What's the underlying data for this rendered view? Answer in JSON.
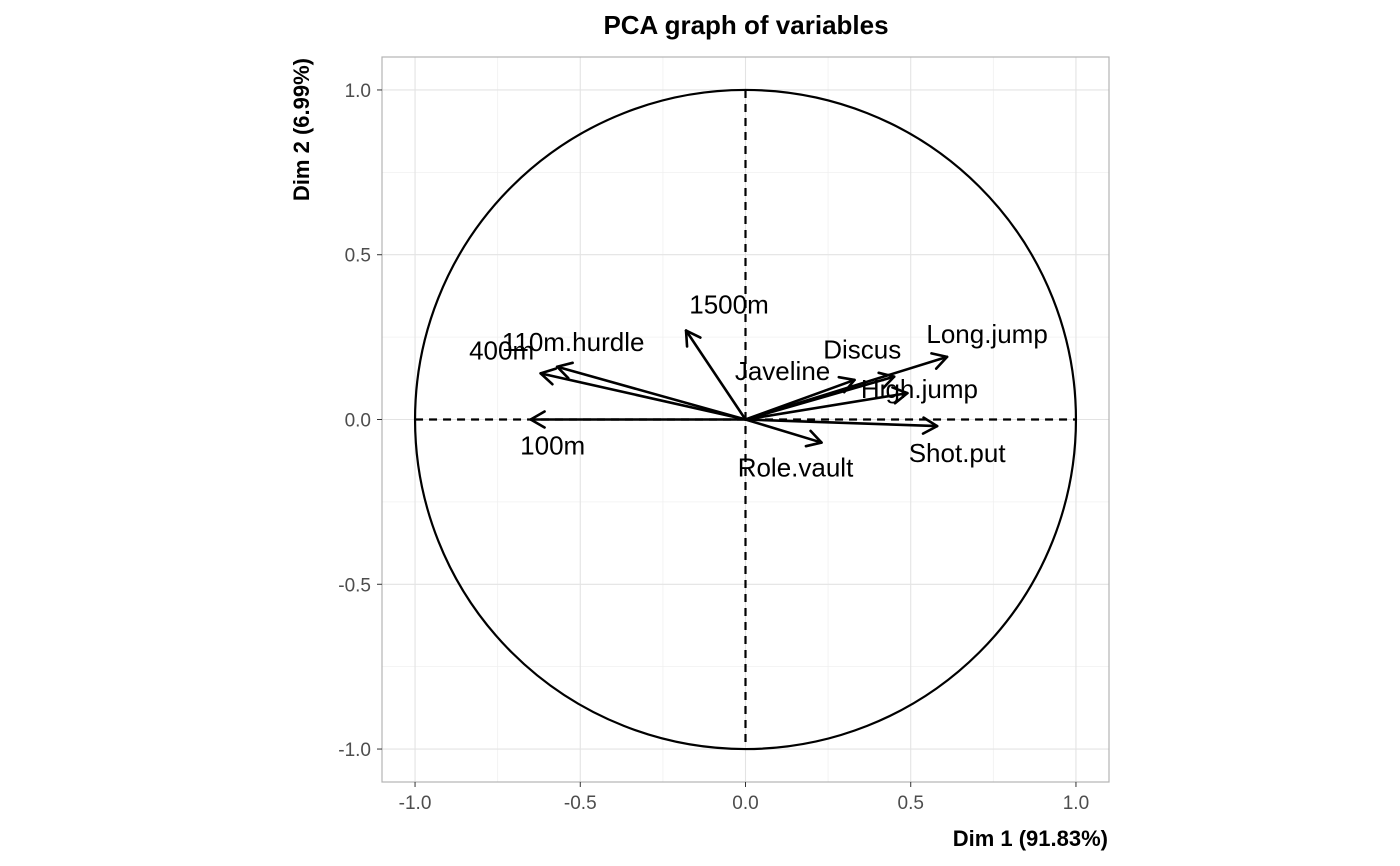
{
  "chart_data": {
    "type": "scatter",
    "subtype": "pca-variable-correlation-circle",
    "title": "PCA graph of variables",
    "xlabel": "Dim 1 (91.83%)",
    "ylabel": "Dim 2 (6.99%)",
    "xlim": [
      -1.1,
      1.1
    ],
    "ylim": [
      -1.1,
      1.1
    ],
    "x_ticks": [
      -1.0,
      -0.5,
      0.0,
      0.5,
      1.0
    ],
    "x_tick_labels": [
      "-1.0",
      "-0.5",
      "0.0",
      "0.5",
      "1.0"
    ],
    "y_ticks": [
      -1.0,
      -0.5,
      0.0,
      0.5,
      1.0
    ],
    "y_tick_labels": [
      "-1.0",
      "-0.5",
      "0.0",
      "0.5",
      "1.0"
    ],
    "grid": true,
    "unit_circle_radius": 1.0,
    "reference_lines": "dashed at x=0 and y=0",
    "variables": [
      {
        "name": "100m",
        "x": -0.65,
        "y": 0.0
      },
      {
        "name": "Long.jump",
        "x": 0.61,
        "y": 0.19
      },
      {
        "name": "Shot.put",
        "x": 0.58,
        "y": -0.02
      },
      {
        "name": "High.jump",
        "x": 0.49,
        "y": 0.08
      },
      {
        "name": "400m",
        "x": -0.62,
        "y": 0.14
      },
      {
        "name": "110m.hurdle",
        "x": -0.57,
        "y": 0.16
      },
      {
        "name": "Discus",
        "x": 0.45,
        "y": 0.13
      },
      {
        "name": "Role.vault",
        "x": 0.23,
        "y": -0.07
      },
      {
        "name": "Javeline",
        "x": 0.33,
        "y": 0.12
      },
      {
        "name": "1500m",
        "x": -0.18,
        "y": 0.27
      }
    ]
  }
}
